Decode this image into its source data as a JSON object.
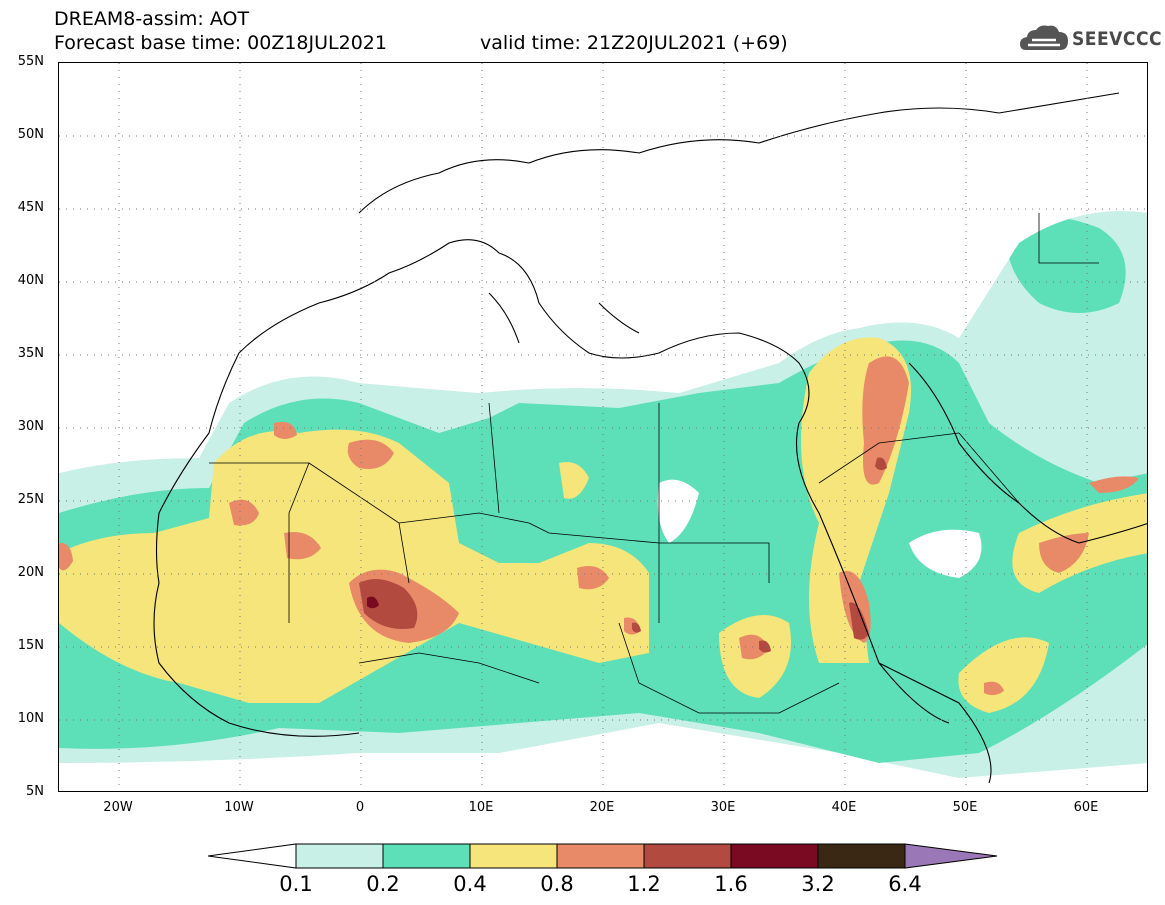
{
  "header": {
    "line1": "DREAM8-assim: AOT",
    "line2": "Forecast base time: 00Z18JUL2021",
    "line3": "valid time: 21Z20JUL2021 (+69)",
    "logo_text": "SEEVCCC",
    "logo_icon": "cloud-icon"
  },
  "map": {
    "variable": "AOT",
    "lat_ticks": [
      "55N",
      "50N",
      "45N",
      "40N",
      "35N",
      "30N",
      "25N",
      "20N",
      "15N",
      "10N",
      "5N"
    ],
    "lon_ticks": [
      "20W",
      "10W",
      "0",
      "10E",
      "20E",
      "30E",
      "40E",
      "50E",
      "60E"
    ],
    "lat_range": [
      5,
      55
    ],
    "lon_range": [
      -25,
      65
    ],
    "gridlines": "dotted"
  },
  "colorbar": {
    "labels": [
      "0.1",
      "0.2",
      "0.4",
      "0.8",
      "1.2",
      "1.6",
      "3.2",
      "6.4"
    ],
    "colors": [
      "#ffffff",
      "#c8f0e6",
      "#5ddfb8",
      "#f5e57a",
      "#e88a68",
      "#b24a40",
      "#7a0a22",
      "#3a2814",
      "#9a78b8"
    ]
  }
}
